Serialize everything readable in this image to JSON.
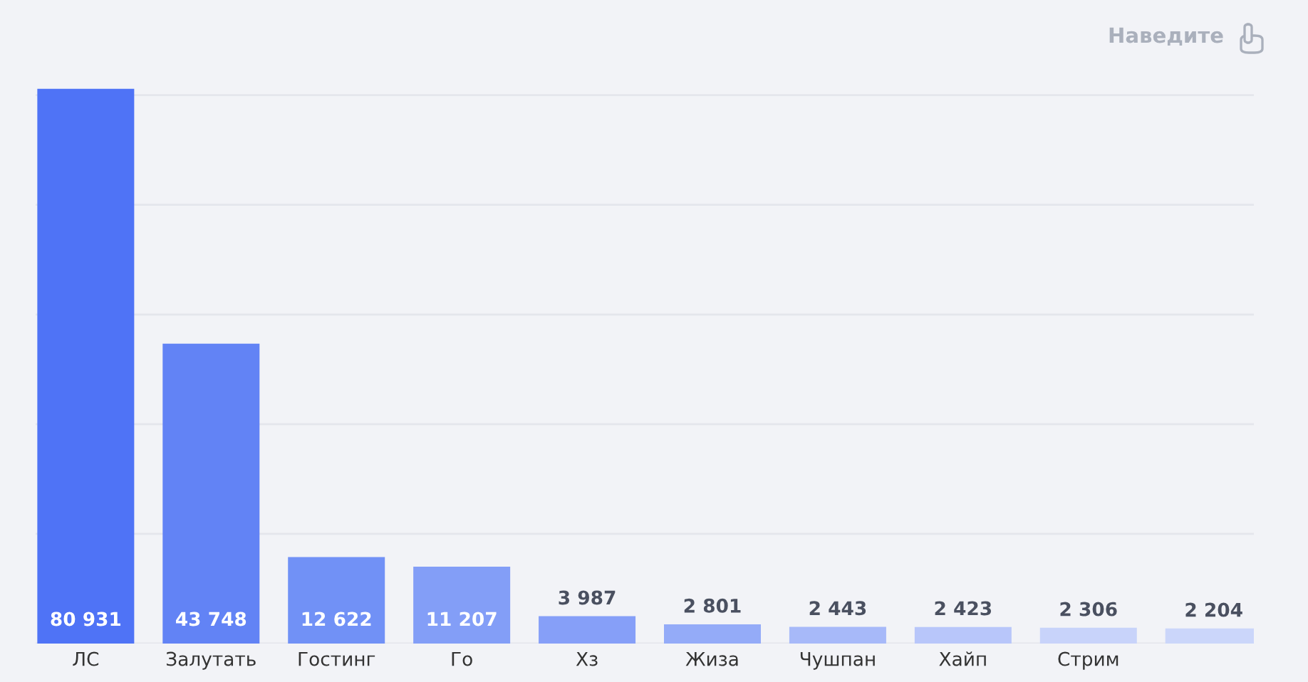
{
  "chart_data": {
    "type": "bar",
    "categories": [
      "ЛС",
      "Залутать",
      "Гостинг",
      "Го",
      "Хз",
      "Жиза",
      "Чушпан",
      "Хайп",
      "Стрим",
      null
    ],
    "values": [
      80931,
      43748,
      12622,
      11207,
      3987,
      2801,
      2443,
      2423,
      2306,
      2204
    ],
    "colors": [
      "#4f73f6",
      "#6283f5",
      "#7191f6",
      "#839ef7",
      "#869ff8",
      "#94abf8",
      "#a7b9f9",
      "#b8c6fa",
      "#c8d3fa",
      "#cbd6fa"
    ],
    "ylim": [
      0,
      81000
    ],
    "yticks": [
      {
        "value": 0,
        "label": null
      },
      {
        "value": 16000,
        "label": null
      },
      {
        "value": 32000,
        "label": null
      },
      {
        "value": 48000,
        "label": null
      },
      {
        "value": 64000,
        "label": null
      },
      {
        "value": 80000,
        "label": null
      }
    ],
    "tick_labels": "x",
    "grid": "y",
    "data_labels": true,
    "annotations": [
      "Наведите"
    ]
  }
}
